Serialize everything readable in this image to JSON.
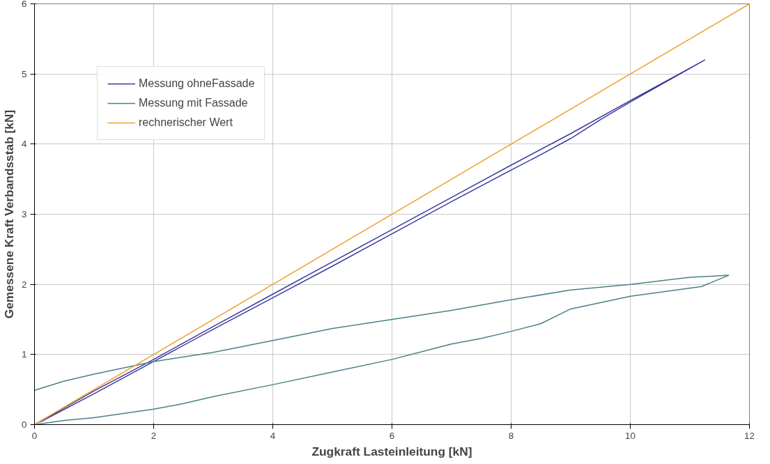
{
  "chart_data": {
    "type": "line",
    "xlabel": "Zugkraft Lasteinleitung [kN]",
    "ylabel": "Gemessene Kraft Verbandsstab [kN]",
    "xlim": [
      0,
      12
    ],
    "ylim": [
      0,
      6
    ],
    "xticks": [
      0,
      2,
      4,
      6,
      8,
      10,
      12
    ],
    "yticks": [
      0,
      1,
      2,
      3,
      4,
      5,
      6
    ],
    "grid": true,
    "legend": "top left",
    "line_style": "solid",
    "marker": "none",
    "series": [
      {
        "name": "Messung ohneFassade",
        "color": "#3a3a9c",
        "x": [
          0,
          1,
          2,
          3,
          4,
          5,
          6,
          7,
          8,
          9,
          10,
          11.25,
          10,
          9.5,
          9,
          8.5,
          8,
          7,
          6,
          5,
          4,
          3,
          2,
          1,
          0.1
        ],
        "values": [
          0,
          0.48,
          0.93,
          1.4,
          1.86,
          2.32,
          2.78,
          3.24,
          3.7,
          4.15,
          4.62,
          5.2,
          4.6,
          4.35,
          4.08,
          3.85,
          3.63,
          3.18,
          2.72,
          2.26,
          1.81,
          1.36,
          0.9,
          0.44,
          0.04
        ]
      },
      {
        "name": "Messung mit Fassade",
        "color": "#4a8088",
        "x": [
          0,
          0.5,
          1,
          2,
          2.5,
          3,
          4,
          5,
          6,
          7,
          7.5,
          8,
          8.5,
          9,
          10,
          11.2,
          11.65,
          11,
          10,
          9,
          8,
          7,
          6,
          5,
          4,
          3,
          2,
          1,
          0.5,
          0
        ],
        "values": [
          0,
          0.06,
          0.1,
          0.22,
          0.3,
          0.4,
          0.57,
          0.75,
          0.93,
          1.15,
          1.23,
          1.33,
          1.44,
          1.65,
          1.83,
          1.97,
          2.13,
          2.1,
          2.0,
          1.92,
          1.78,
          1.63,
          1.5,
          1.37,
          1.2,
          1.03,
          0.9,
          0.72,
          0.62,
          0.49
        ]
      },
      {
        "name": "rechnerischer Wert",
        "color": "#f0a030",
        "x": [
          0,
          12
        ],
        "values": [
          0,
          6
        ]
      }
    ]
  }
}
